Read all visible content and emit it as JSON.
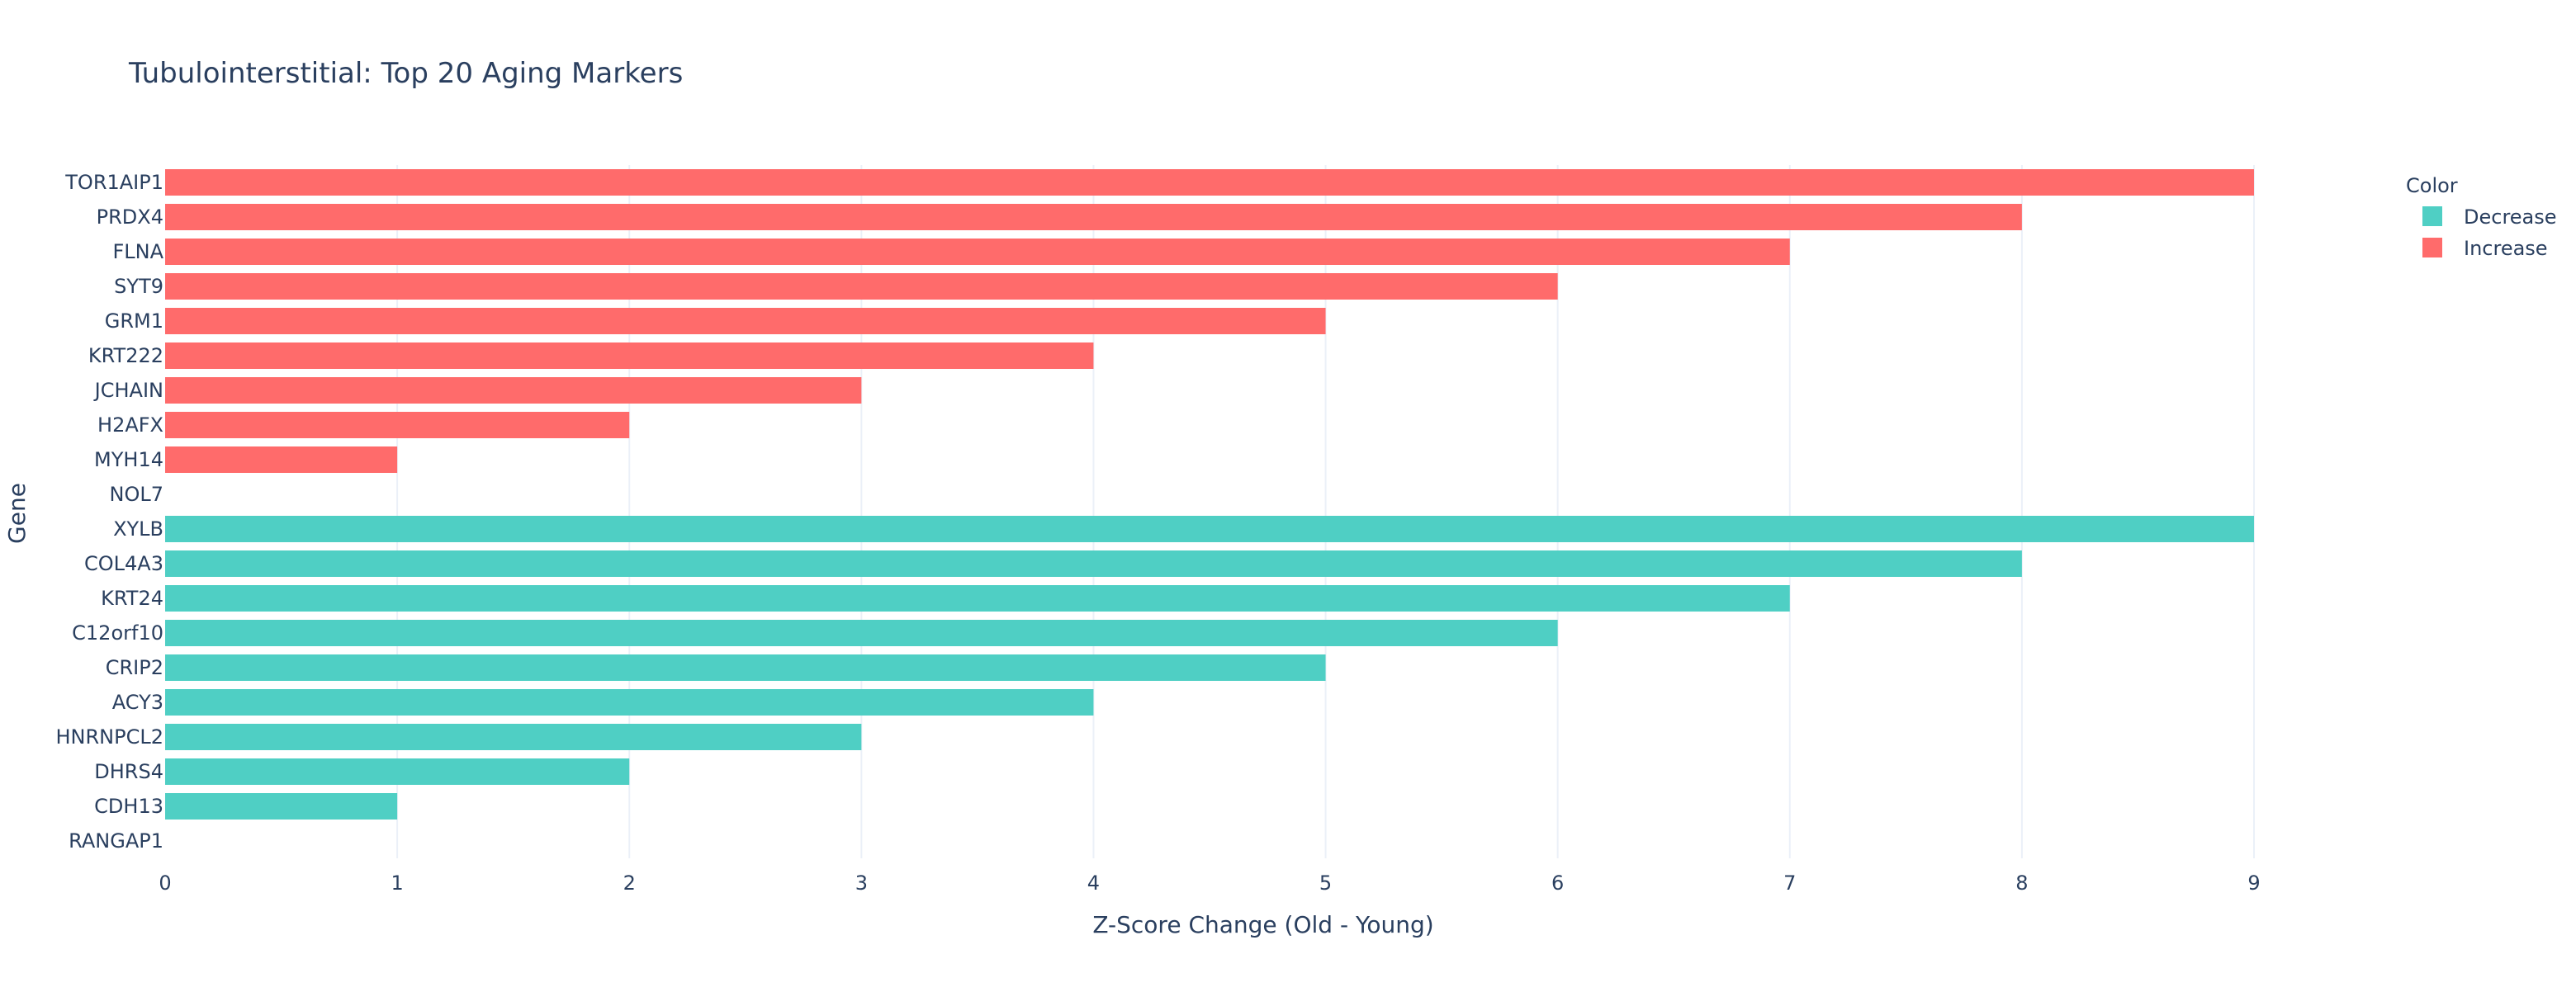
{
  "chart_data": {
    "type": "bar",
    "orientation": "horizontal",
    "title": "Tubulointerstitial: Top 20 Aging Markers",
    "xlabel": "Z-Score Change (Old - Young)",
    "ylabel": "Gene",
    "xlim": [
      0,
      9
    ],
    "xticks": [
      0,
      1,
      2,
      3,
      4,
      5,
      6,
      7,
      8,
      9
    ],
    "grid": true,
    "categories": [
      "TOR1AIP1",
      "PRDX4",
      "FLNA",
      "SYT9",
      "GRM1",
      "KRT222",
      "JCHAIN",
      "H2AFX",
      "MYH14",
      "NOL7",
      "XYLB",
      "COL4A3",
      "KRT24",
      "C12orf10",
      "CRIP2",
      "ACY3",
      "HNRNPCL2",
      "DHRS4",
      "CDH13",
      "RANGAP1"
    ],
    "bars": [
      {
        "gene": "TOR1AIP1",
        "value": 9,
        "group": "Increase"
      },
      {
        "gene": "PRDX4",
        "value": 8,
        "group": "Increase"
      },
      {
        "gene": "FLNA",
        "value": 7,
        "group": "Increase"
      },
      {
        "gene": "SYT9",
        "value": 6,
        "group": "Increase"
      },
      {
        "gene": "GRM1",
        "value": 5,
        "group": "Increase"
      },
      {
        "gene": "KRT222",
        "value": 4,
        "group": "Increase"
      },
      {
        "gene": "JCHAIN",
        "value": 3,
        "group": "Increase"
      },
      {
        "gene": "H2AFX",
        "value": 2,
        "group": "Increase"
      },
      {
        "gene": "MYH14",
        "value": 1,
        "group": "Increase"
      },
      {
        "gene": "NOL7",
        "value": 0,
        "group": "Increase"
      },
      {
        "gene": "XYLB",
        "value": 9,
        "group": "Decrease"
      },
      {
        "gene": "COL4A3",
        "value": 8,
        "group": "Decrease"
      },
      {
        "gene": "KRT24",
        "value": 7,
        "group": "Decrease"
      },
      {
        "gene": "C12orf10",
        "value": 6,
        "group": "Decrease"
      },
      {
        "gene": "CRIP2",
        "value": 5,
        "group": "Decrease"
      },
      {
        "gene": "ACY3",
        "value": 4,
        "group": "Decrease"
      },
      {
        "gene": "HNRNPCL2",
        "value": 3,
        "group": "Decrease"
      },
      {
        "gene": "DHRS4",
        "value": 2,
        "group": "Decrease"
      },
      {
        "gene": "CDH13",
        "value": 1,
        "group": "Decrease"
      },
      {
        "gene": "RANGAP1",
        "value": 0,
        "group": "Decrease"
      }
    ],
    "legend": {
      "title": "Color",
      "placement": "top-right",
      "entries": [
        {
          "name": "Decrease",
          "color": "#4fcfc4"
        },
        {
          "name": "Increase",
          "color": "#ff6b6b"
        }
      ]
    }
  }
}
